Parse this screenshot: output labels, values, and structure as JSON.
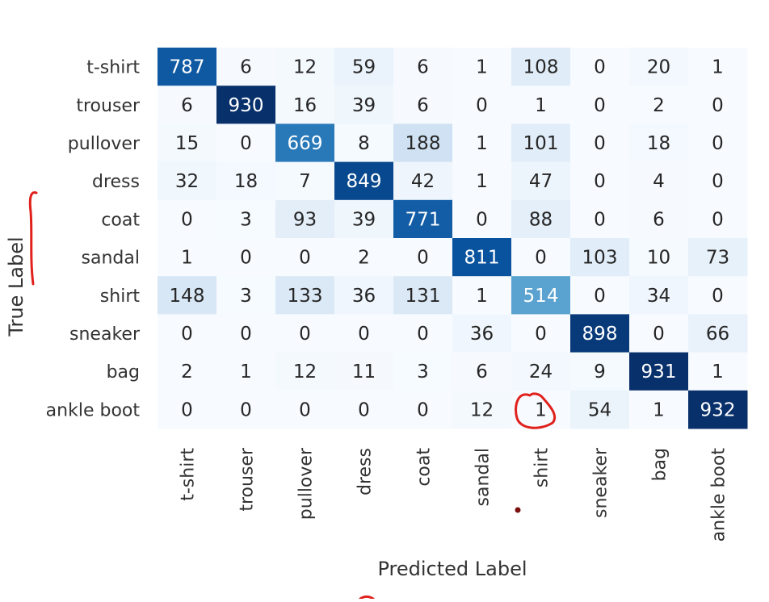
{
  "chart_data": {
    "type": "heatmap",
    "title": "",
    "xlabel": "Predicted Label",
    "ylabel": "True Label",
    "categories": [
      "t-shirt",
      "trouser",
      "pullover",
      "dress",
      "coat",
      "sandal",
      "shirt",
      "sneaker",
      "bag",
      "ankle boot"
    ],
    "rows": [
      "t-shirt",
      "trouser",
      "pullover",
      "dress",
      "coat",
      "sandal",
      "shirt",
      "sneaker",
      "bag",
      "ankle boot"
    ],
    "values": [
      [
        787,
        6,
        12,
        59,
        6,
        1,
        108,
        0,
        20,
        1
      ],
      [
        6,
        930,
        16,
        39,
        6,
        0,
        1,
        0,
        2,
        0
      ],
      [
        15,
        0,
        669,
        8,
        188,
        1,
        101,
        0,
        18,
        0
      ],
      [
        32,
        18,
        7,
        849,
        42,
        1,
        47,
        0,
        4,
        0
      ],
      [
        0,
        3,
        93,
        39,
        771,
        0,
        88,
        0,
        6,
        0
      ],
      [
        1,
        0,
        0,
        2,
        0,
        811,
        0,
        103,
        10,
        73
      ],
      [
        148,
        3,
        133,
        36,
        131,
        1,
        514,
        0,
        34,
        0
      ],
      [
        0,
        0,
        0,
        0,
        0,
        36,
        0,
        898,
        0,
        66
      ],
      [
        2,
        1,
        12,
        11,
        3,
        6,
        24,
        9,
        931,
        1
      ],
      [
        0,
        0,
        0,
        0,
        0,
        12,
        1,
        54,
        1,
        932
      ]
    ],
    "colormap": "Blues",
    "vmin": 0,
    "vmax": 932,
    "annotations_colors": {
      "dark_text": "#262626",
      "light_text": "#ffffff",
      "red_ink": "#e0211c"
    }
  }
}
